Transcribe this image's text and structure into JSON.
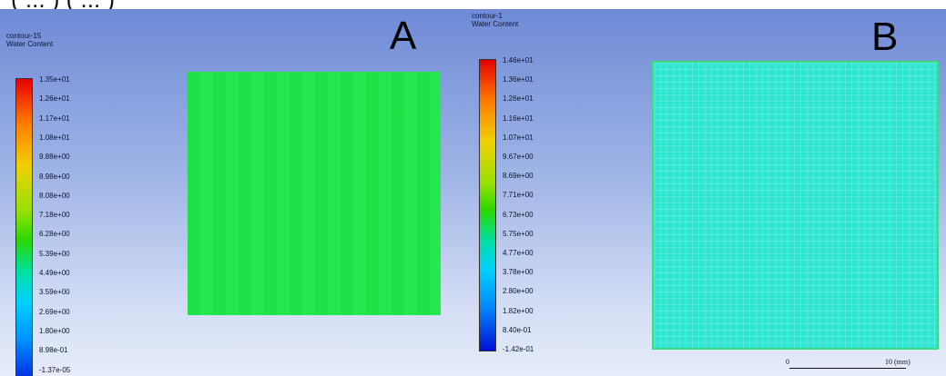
{
  "panel_a": {
    "letter": "A",
    "title_line1": "contour-15",
    "title_line2": "Water Content",
    "colorbar_labels": [
      "1.35e+01",
      "1.26e+01",
      "1.17e+01",
      "1.08e+01",
      "9.88e+00",
      "8.98e+00",
      "8.08e+00",
      "7.18e+00",
      "6.28e+00",
      "5.39e+00",
      "4.49e+00",
      "3.59e+00",
      "2.69e+00",
      "1.80e+00",
      "8.98e-01",
      "-1.37e-05"
    ],
    "field_color": "#1ee64a"
  },
  "panel_b": {
    "letter": "B",
    "title_line1": "contour-1",
    "title_line2": "Water Content",
    "colorbar_labels": [
      "1.46e+01",
      "1.36e+01",
      "1.26e+01",
      "1.16e+01",
      "1.07e+01",
      "9.67e+00",
      "8.69e+00",
      "7.71e+00",
      "6.73e+00",
      "5.75e+00",
      "4.77e+00",
      "3.78e+00",
      "2.80e+00",
      "1.82e+00",
      "8.40e-01",
      "-1.42e-01"
    ],
    "field_color": "#2ee6d2",
    "scale_bar": {
      "start_label": "0",
      "end_label": "10 (mm)"
    }
  }
}
